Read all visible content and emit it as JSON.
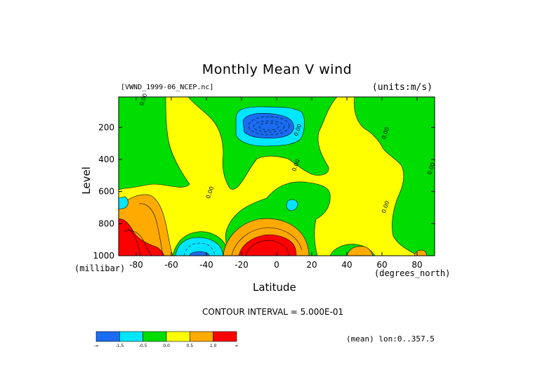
{
  "title": "Monthly Mean V wind",
  "dataset": "[VWND_1999-06_NCEP.nc]",
  "units": "(units:m/s)",
  "contour_interval": "CONTOUR INTERVAL = 5.000E-01",
  "mean_info": "(mean) lon:0..357.5",
  "chart_data": {
    "type": "heatmap",
    "title": "Monthly Mean V wind",
    "xlabel": "Latitude",
    "xunit": "(degrees_north)",
    "ylabel": "Level",
    "yunit": "(millibar)",
    "xlim": [
      -90,
      90
    ],
    "ylim": [
      1000,
      10
    ],
    "x_ticks": [
      -80,
      -60,
      -40,
      -20,
      0,
      20,
      40,
      60,
      80
    ],
    "x_tick_labels": [
      "-80",
      "-60",
      "-40",
      "-20",
      "0",
      "20",
      "40",
      "60",
      "80"
    ],
    "y_ticks": [
      200,
      400,
      600,
      800,
      1000
    ],
    "y_tick_labels": [
      "200",
      "400",
      "600",
      "800",
      "1000"
    ],
    "contour_labels": [
      {
        "text": "0.00",
        "lat": -75,
        "level": 30
      },
      {
        "text": "0.00",
        "lat": 13,
        "level": 220
      },
      {
        "text": "0.00",
        "lat": 12,
        "level": 440
      },
      {
        "text": "0.00",
        "lat": -37,
        "level": 610
      },
      {
        "text": "0.00",
        "lat": 63,
        "level": 240
      },
      {
        "text": "0.00",
        "lat": 63,
        "level": 700
      },
      {
        "text": "0.00",
        "lat": 89,
        "level": 460
      }
    ],
    "colorbar": {
      "colors": [
        "#1a6cf0",
        "#00e6ff",
        "#00dd00",
        "#ffff00",
        "#ffaa00",
        "#ff0000"
      ],
      "labels": [
        "-∞",
        "-1.5",
        "-0.5",
        "0.0",
        "0.5",
        "1.0",
        "∞"
      ]
    },
    "regions": [
      {
        "value": 1.0,
        "color": "#ff0000",
        "lat_range": [
          -90,
          -77
        ],
        "level_range": [
          700,
          1000
        ]
      },
      {
        "value": 0.5,
        "color": "#ffaa00",
        "lat_range": [
          -82,
          -62
        ],
        "level_range": [
          620,
          1000
        ]
      },
      {
        "value": -1.5,
        "color": "#1a6cf0",
        "lat_range": [
          -8,
          10
        ],
        "level_range": [
          130,
          250
        ]
      },
      {
        "value": -0.5,
        "color": "#00e6ff",
        "lat_range": [
          -14,
          14
        ],
        "level_range": [
          90,
          290
        ]
      },
      {
        "value": -0.5,
        "color": "#00e6ff",
        "lat_range": [
          -58,
          -30
        ],
        "level_range": [
          900,
          1000
        ]
      },
      {
        "value": 1.0,
        "color": "#ff0000",
        "lat_range": [
          -20,
          15
        ],
        "level_range": [
          880,
          1000
        ]
      },
      {
        "value": 0.5,
        "color": "#ffaa00",
        "lat_range": [
          -28,
          18
        ],
        "level_range": [
          780,
          1000
        ]
      },
      {
        "value": 0.5,
        "color": "#ffaa00",
        "lat_range": [
          36,
          50
        ],
        "level_range": [
          950,
          1000
        ]
      }
    ]
  }
}
